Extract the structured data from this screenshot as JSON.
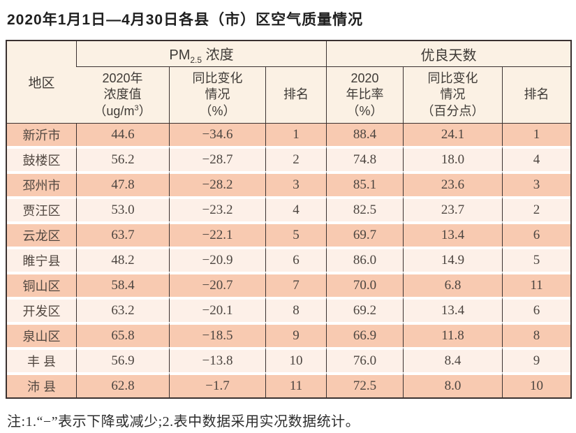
{
  "title": "2020年1月1日—4月30日各县（市）区空气质量情况",
  "header": {
    "region": "地区",
    "pm_title_pre": "PM",
    "pm_title_sub": "2.5",
    "pm_title_post": " 浓度",
    "good_title": "优良天数",
    "pm_col1_l1": "2020年",
    "pm_col1_l2": "浓度值",
    "pm_col1_l3a": "（ug/m",
    "pm_col1_l3sup": "3",
    "pm_col1_l3b": "）",
    "pm_col2_l1": "同比变化",
    "pm_col2_l2": "情况",
    "pm_col2_l3": "（%）",
    "pm_col3": "排名",
    "gd_col1_l1": "2020",
    "gd_col1_l2": "年比率",
    "gd_col1_l3": "（%）",
    "gd_col2_l1": "同比变化",
    "gd_col2_l2": "情况",
    "gd_col2_l3": "（百分点）",
    "gd_col3": "排名"
  },
  "rows": [
    {
      "region": "新沂市",
      "pm_value": "44.6",
      "pm_change": "−34.6",
      "pm_rank": "1",
      "gd_rate": "88.4",
      "gd_change": "24.1",
      "gd_rank": "1"
    },
    {
      "region": "鼓楼区",
      "pm_value": "56.2",
      "pm_change": "−28.7",
      "pm_rank": "2",
      "gd_rate": "74.8",
      "gd_change": "18.0",
      "gd_rank": "4"
    },
    {
      "region": "邳州市",
      "pm_value": "47.8",
      "pm_change": "−28.2",
      "pm_rank": "3",
      "gd_rate": "85.1",
      "gd_change": "23.6",
      "gd_rank": "3"
    },
    {
      "region": "贾汪区",
      "pm_value": "53.0",
      "pm_change": "−23.2",
      "pm_rank": "4",
      "gd_rate": "82.5",
      "gd_change": "23.7",
      "gd_rank": "2"
    },
    {
      "region": "云龙区",
      "pm_value": "63.7",
      "pm_change": "−22.1",
      "pm_rank": "5",
      "gd_rate": "69.7",
      "gd_change": "13.4",
      "gd_rank": "6"
    },
    {
      "region": "睢宁县",
      "pm_value": "48.2",
      "pm_change": "−20.9",
      "pm_rank": "6",
      "gd_rate": "86.0",
      "gd_change": "14.9",
      "gd_rank": "5"
    },
    {
      "region": "铜山区",
      "pm_value": "58.4",
      "pm_change": "−20.7",
      "pm_rank": "7",
      "gd_rate": "70.0",
      "gd_change": "6.8",
      "gd_rank": "11"
    },
    {
      "region": "开发区",
      "pm_value": "63.2",
      "pm_change": "−20.1",
      "pm_rank": "8",
      "gd_rate": "69.2",
      "gd_change": "13.4",
      "gd_rank": "6"
    },
    {
      "region": "泉山区",
      "pm_value": "65.8",
      "pm_change": "−18.5",
      "pm_rank": "9",
      "gd_rate": "66.9",
      "gd_change": "11.8",
      "gd_rank": "8"
    },
    {
      "region": "丰 县",
      "pm_value": "56.9",
      "pm_change": "−13.8",
      "pm_rank": "10",
      "gd_rate": "76.0",
      "gd_change": "8.4",
      "gd_rank": "9"
    },
    {
      "region": "沛 县",
      "pm_value": "62.8",
      "pm_change": "−1.7",
      "pm_rank": "11",
      "gd_rate": "72.5",
      "gd_change": "8.0",
      "gd_rank": "10"
    }
  ],
  "note": "注:1.“−”表示下降或减少;2.表中数据采用实况数据统计。",
  "colors": {
    "border": "#3a3130",
    "header_bg": "#fbf1e4",
    "row_odd_bg": "#f8cab1",
    "row_even_bg": "#fdf0e8",
    "text": "#4c4540"
  }
}
